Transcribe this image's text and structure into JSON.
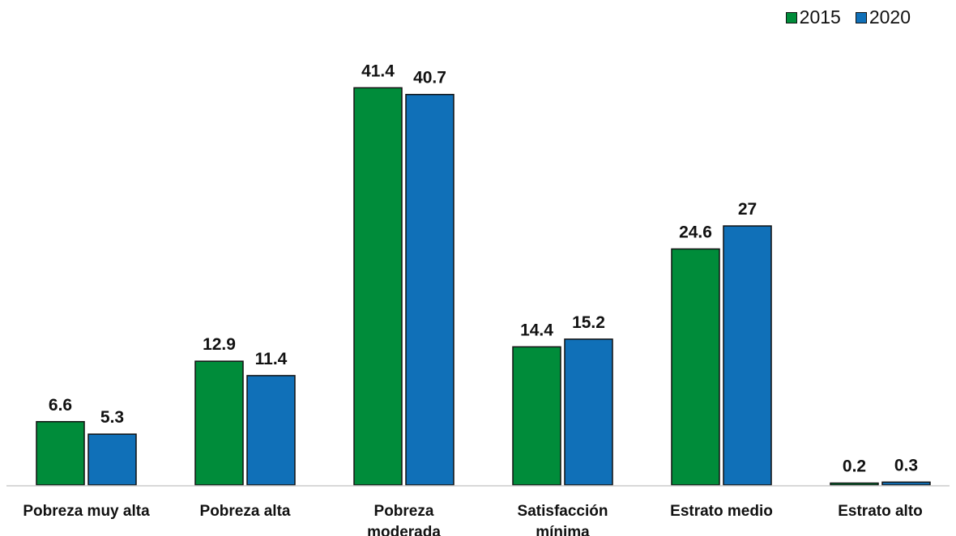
{
  "chart_data": {
    "type": "bar",
    "categories": [
      [
        "Pobreza muy alta"
      ],
      [
        "Pobreza alta"
      ],
      [
        "Pobreza",
        "moderada"
      ],
      [
        "Satisfacción",
        "mínima"
      ],
      [
        "Estrato medio"
      ],
      [
        "Estrato alto"
      ]
    ],
    "series": [
      {
        "name": "2015",
        "color": "#008c3a",
        "values": [
          6.6,
          12.9,
          41.4,
          14.4,
          24.6,
          0.2
        ],
        "labels": [
          "6.6",
          "12.9",
          "41.4",
          "14.4",
          "24.6",
          "0.2"
        ]
      },
      {
        "name": "2020",
        "color": "#1070b8",
        "values": [
          5.3,
          11.4,
          40.7,
          15.2,
          27,
          0.3
        ],
        "labels": [
          "5.3",
          "11.4",
          "40.7",
          "15.2",
          "27",
          "0.3"
        ]
      }
    ],
    "ylim": [
      0,
      45
    ],
    "grid": false,
    "legend": "top-right"
  }
}
